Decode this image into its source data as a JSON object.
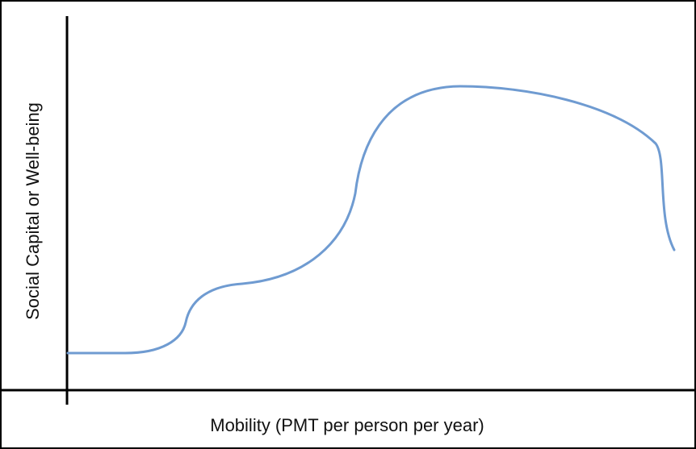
{
  "x_axis_label": "Mobility (PMT per person per year)",
  "y_axis_label": "Social Capital or Well-being"
}
